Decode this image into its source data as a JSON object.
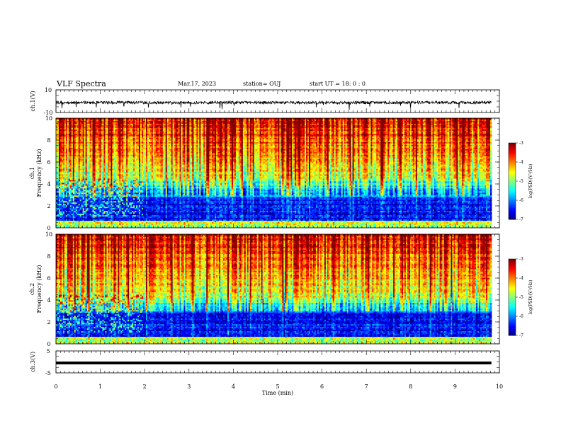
{
  "header": {
    "title": "VLF Spectra",
    "date": "Mar.17, 2023",
    "station": "station= OUJ",
    "start": "start  UT =   18: 0  : 0"
  },
  "chart_data": [
    {
      "type": "line",
      "name": "ch1-waveform",
      "ylabel": "ch.1(V)",
      "ylim": [
        -10,
        10
      ],
      "yticks": [
        "10",
        "-10"
      ],
      "baseline": 0,
      "x_range": [
        0,
        9.82
      ]
    },
    {
      "type": "heatmap",
      "name": "ch1-spectrogram",
      "ylabel_line1": "ch.1",
      "ylabel_line2": "Frequency  (kHz)",
      "ylim": [
        0,
        10
      ],
      "yticks": [
        0,
        2,
        4,
        6,
        8,
        10
      ],
      "x_range": [
        0,
        9.82
      ],
      "colorbar": {
        "label": "log(PSD)(V²/Hz)",
        "range": [
          -7,
          -3
        ],
        "ticks": [
          -3,
          -4,
          -5,
          -6,
          -7
        ]
      }
    },
    {
      "type": "heatmap",
      "name": "ch2-spectrogram",
      "ylabel_line1": "ch.2",
      "ylabel_line2": "Frequency  (kHz)",
      "ylim": [
        0,
        10
      ],
      "yticks": [
        0,
        2,
        4,
        6,
        8,
        10
      ],
      "x_range": [
        0,
        9.82
      ],
      "colorbar": {
        "label": "log(PSD)(V²/Hz)",
        "range": [
          -7,
          -3
        ],
        "ticks": [
          -3,
          -4,
          -5,
          -6,
          -7
        ]
      }
    },
    {
      "type": "line",
      "name": "ch3-waveform",
      "ylabel": "ch.3(V)",
      "ylim": [
        -5,
        5
      ],
      "yticks": [
        "5",
        "-5"
      ],
      "baseline": -0.5,
      "x_range": [
        0,
        9.82
      ]
    }
  ],
  "xaxis": {
    "label": "Time  (min)",
    "range": [
      0,
      10
    ],
    "ticks": [
      0,
      1,
      2,
      3,
      4,
      5,
      6,
      7,
      8,
      9,
      10
    ]
  }
}
